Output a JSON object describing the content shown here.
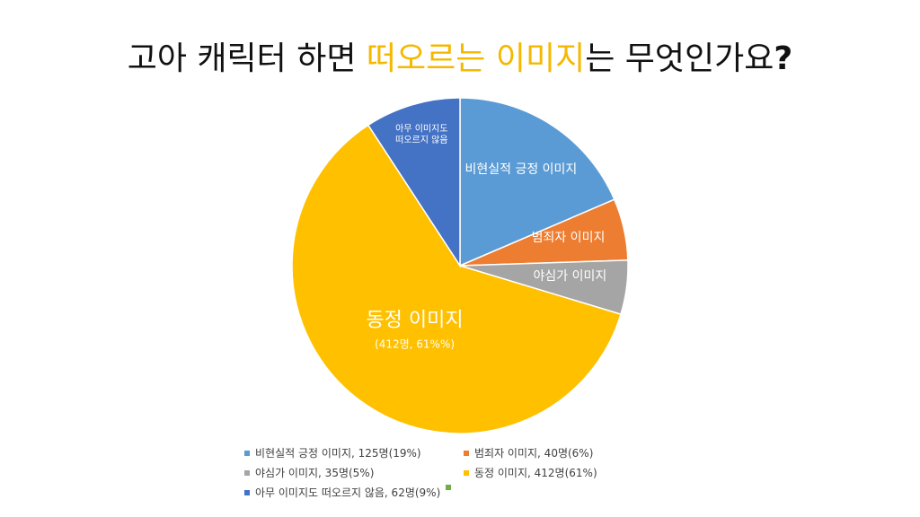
{
  "title": {
    "part1": "고아 캐릭터 하면 ",
    "highlight": "떠오르는 이미지",
    "part2": "는 무엇인가요",
    "mark": "?"
  },
  "chart_data": {
    "type": "pie",
    "categories": [
      "비현실적 긍정 이미지",
      "범죄자 이미지",
      "야심가 이미지",
      "동정 이미지",
      "아무 이미지도 떠오르지 않음"
    ],
    "values": [
      125,
      40,
      35,
      412,
      62
    ],
    "percents": [
      19,
      6,
      5,
      61,
      9
    ],
    "colors": [
      "#5b9bd5",
      "#ed7d31",
      "#a5a5a5",
      "#ffc000",
      "#4472c4"
    ],
    "slice_labels": [
      "비현실적 긍정 이미지",
      "범죄자 이미지",
      "야심가 이미지",
      "동정 이미지",
      "아무 이미지도 떠오르지 않음"
    ],
    "big_slice_sublabel": "(412명, 61%%)",
    "legend": [
      {
        "text": "비현실적 긍정 이미지, 125명(19%)",
        "color": "#5b9bd5"
      },
      {
        "text": "범죄자 이미지, 40명(6%)",
        "color": "#ed7d31"
      },
      {
        "text": "야심가 이미지, 35명(5%)",
        "color": "#a5a5a5"
      },
      {
        "text": "동정 이미지, 412명(61%)",
        "color": "#ffc000"
      },
      {
        "text": "아무 이미지도 떠오르지 않음, 62명(9%)",
        "color": "#4472c4"
      },
      {
        "text": "",
        "color": "#70ad47"
      }
    ]
  }
}
